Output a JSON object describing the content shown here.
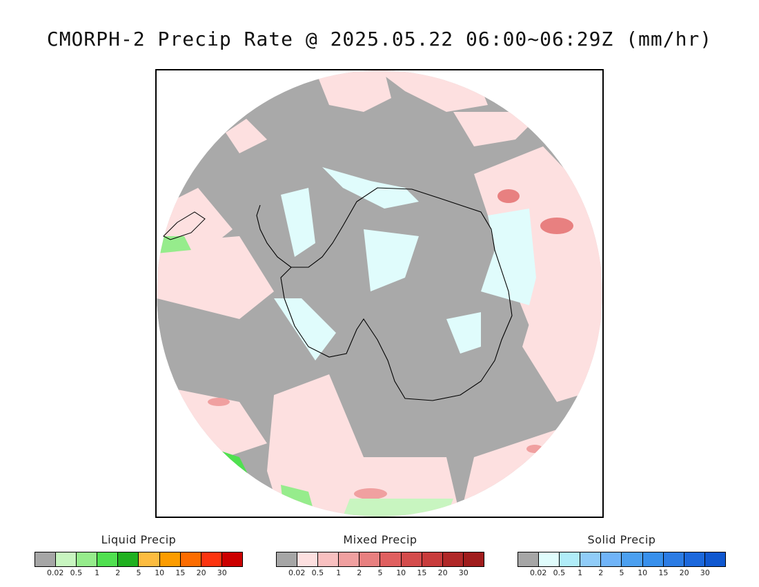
{
  "title": "CMORPH-2 Precip Rate @ 2025.05.22 06:00~06:29Z (mm/hr)",
  "map": {
    "projection": "south-polar-stereographic",
    "background_color": "#a9a9a9",
    "outside_color": "#ffffff"
  },
  "legends": [
    {
      "id": "liquid",
      "title": "Liquid Precip",
      "colors": [
        "#a6a6a6",
        "#c8f5c0",
        "#96ec8c",
        "#50e050",
        "#20b020",
        "#fcbc40",
        "#fc9c00",
        "#fc6c00",
        "#fc3410",
        "#cc0000"
      ],
      "tick_labels": [
        "0.02",
        "0.5",
        "1",
        "2",
        "5",
        "10",
        "15",
        "20",
        "30"
      ]
    },
    {
      "id": "mixed",
      "title": "Mixed Precip",
      "colors": [
        "#a6a6a6",
        "#fde0e0",
        "#f8c0c0",
        "#f0a0a0",
        "#e88080",
        "#e06060",
        "#d44c4c",
        "#c83c3c",
        "#b02828",
        "#a01c1c"
      ],
      "tick_labels": [
        "0.02",
        "0.5",
        "1",
        "2",
        "5",
        "10",
        "15",
        "20",
        "30"
      ]
    },
    {
      "id": "solid",
      "title": "Solid Precip",
      "colors": [
        "#a6a6a6",
        "#e0fcfc",
        "#b0ecf8",
        "#90ccf8",
        "#70b4f8",
        "#4ca0f0",
        "#3890ec",
        "#2c7ce4",
        "#1c68dc",
        "#1058d0"
      ],
      "tick_labels": [
        "0.02",
        "0.5",
        "1",
        "2",
        "5",
        "10",
        "15",
        "20",
        "30"
      ]
    }
  ]
}
